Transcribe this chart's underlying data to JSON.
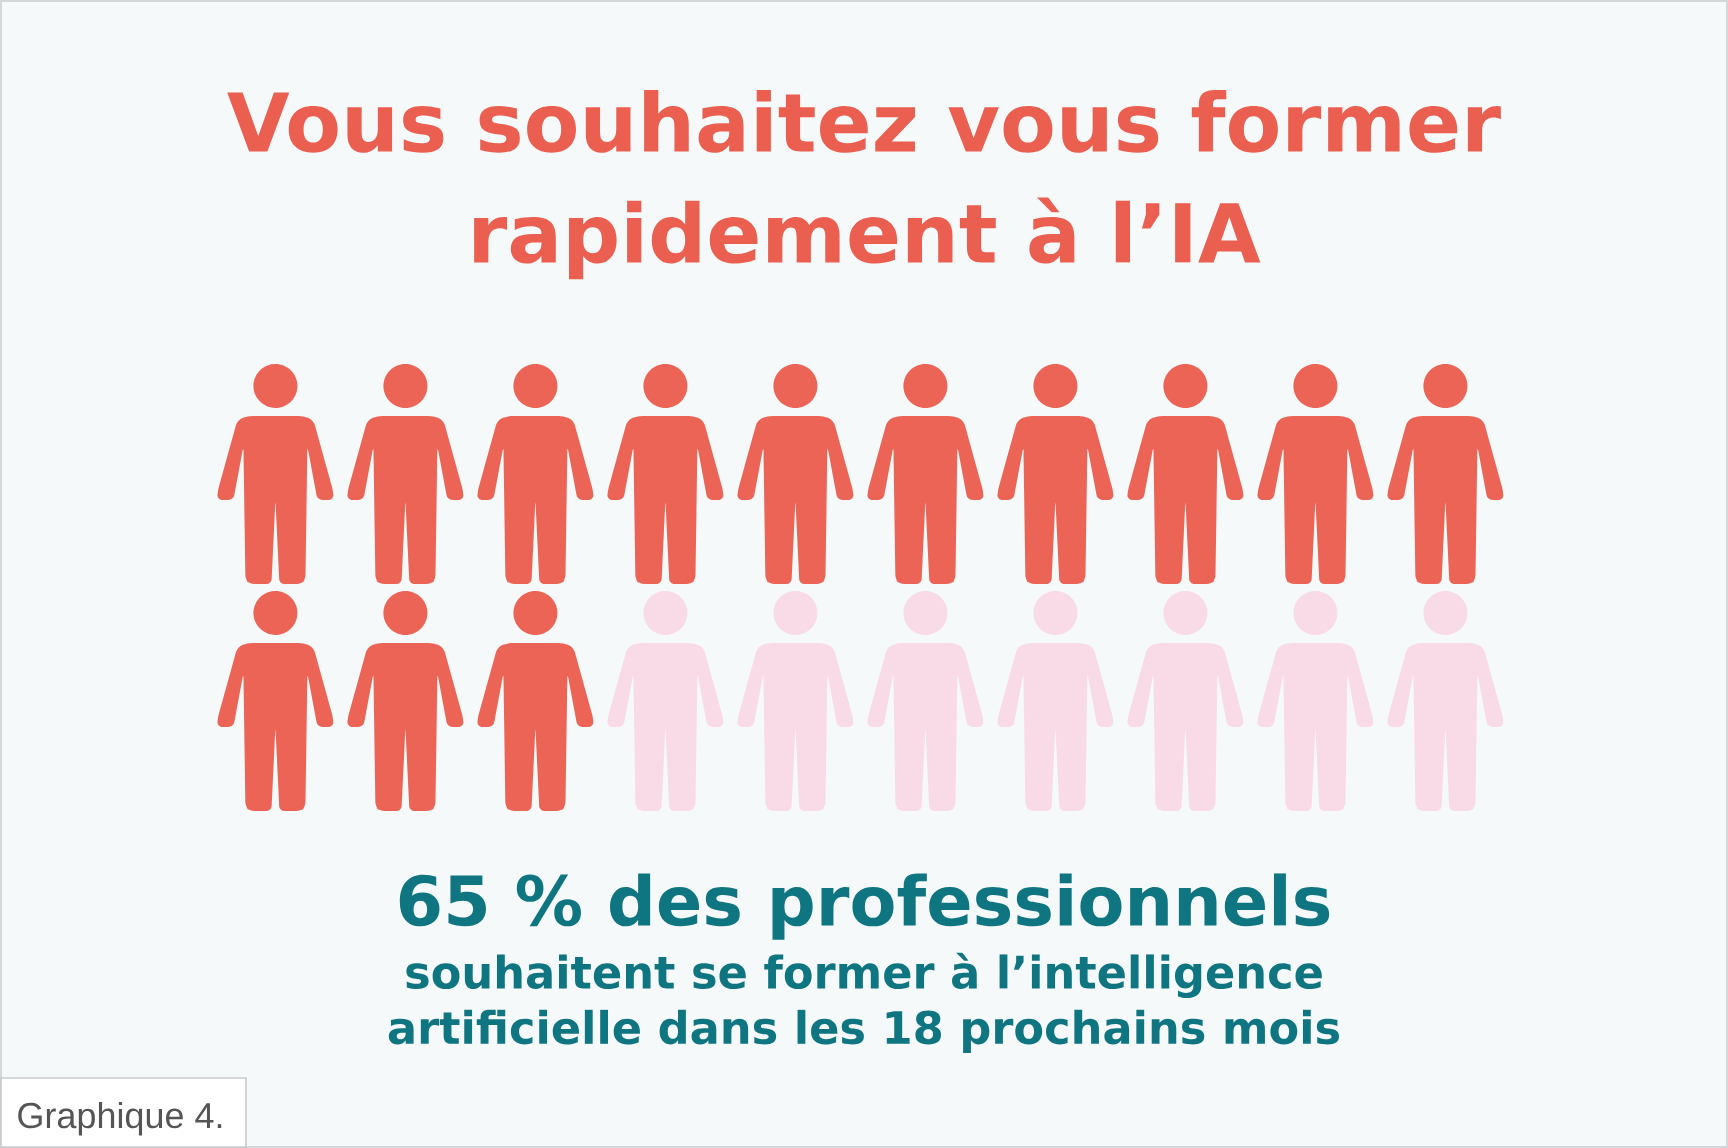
{
  "chart_data": {
    "type": "other",
    "title": "Vous souhaitez vous former rapidement à l’IA",
    "subtitle": "des professionnels",
    "annotations": [
      "souhaitent se former à l’intelligence artificielle dans les 18 prochains mois",
      "Graphique 4."
    ],
    "values": [
      65
    ],
    "value_labels": [
      "65 %"
    ],
    "color": "#eb6456"
  }
}
